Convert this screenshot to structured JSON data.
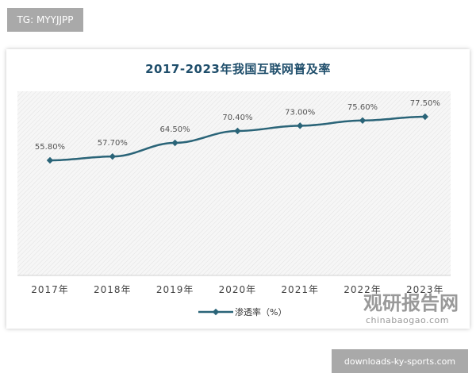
{
  "badges": {
    "top": "TG: MYYJJPP",
    "bottom": "downloads-ky-sports.com"
  },
  "watermark": {
    "cn": "观研报告网",
    "en": "chinabaogao.com"
  },
  "chart_data": {
    "type": "line",
    "title": "2017-2023年我国互联网普及率",
    "categories": [
      "2017年",
      "2018年",
      "2019年",
      "2020年",
      "2021年",
      "2022年",
      "2023年"
    ],
    "series": [
      {
        "name": "渗透率（%）",
        "values": [
          55.8,
          57.7,
          64.5,
          70.4,
          73.0,
          75.6,
          77.5
        ],
        "labels": [
          "55.80%",
          "57.70%",
          "64.50%",
          "70.40%",
          "73.00%",
          "75.60%",
          "77.50%"
        ]
      }
    ],
    "color": "#2a6478",
    "legend": "bottom",
    "grid": false
  }
}
